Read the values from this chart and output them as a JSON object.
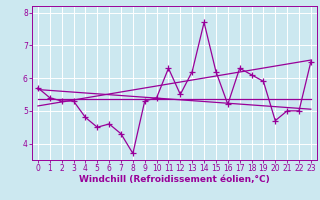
{
  "xlabel": "Windchill (Refroidissement éolien,°C)",
  "background_color": "#cce8f0",
  "line_color": "#990099",
  "grid_color": "#ffffff",
  "xlim": [
    -0.5,
    23.5
  ],
  "ylim": [
    3.5,
    8.2
  ],
  "yticks": [
    4,
    5,
    6,
    7,
    8
  ],
  "xticks": [
    0,
    1,
    2,
    3,
    4,
    5,
    6,
    7,
    8,
    9,
    10,
    11,
    12,
    13,
    14,
    15,
    16,
    17,
    18,
    19,
    20,
    21,
    22,
    23
  ],
  "hours": [
    0,
    1,
    2,
    3,
    4,
    5,
    6,
    7,
    8,
    9,
    10,
    11,
    12,
    13,
    14,
    15,
    16,
    17,
    18,
    19,
    20,
    21,
    22,
    23
  ],
  "windchill": [
    5.7,
    5.4,
    5.3,
    5.3,
    4.8,
    4.5,
    4.6,
    4.3,
    3.7,
    5.3,
    5.4,
    6.3,
    5.5,
    6.2,
    7.7,
    6.2,
    5.2,
    6.3,
    6.1,
    5.9,
    4.7,
    5.0,
    5.0,
    6.5
  ],
  "trend1_x": [
    0,
    23
  ],
  "trend1_y": [
    5.35,
    5.35
  ],
  "trend2_x": [
    0,
    23
  ],
  "trend2_y": [
    5.15,
    6.55
  ],
  "trend3_x": [
    0,
    23
  ],
  "trend3_y": [
    5.65,
    5.05
  ],
  "line_width": 0.9,
  "xlabel_fontsize": 6.5,
  "tick_fontsize": 5.5
}
